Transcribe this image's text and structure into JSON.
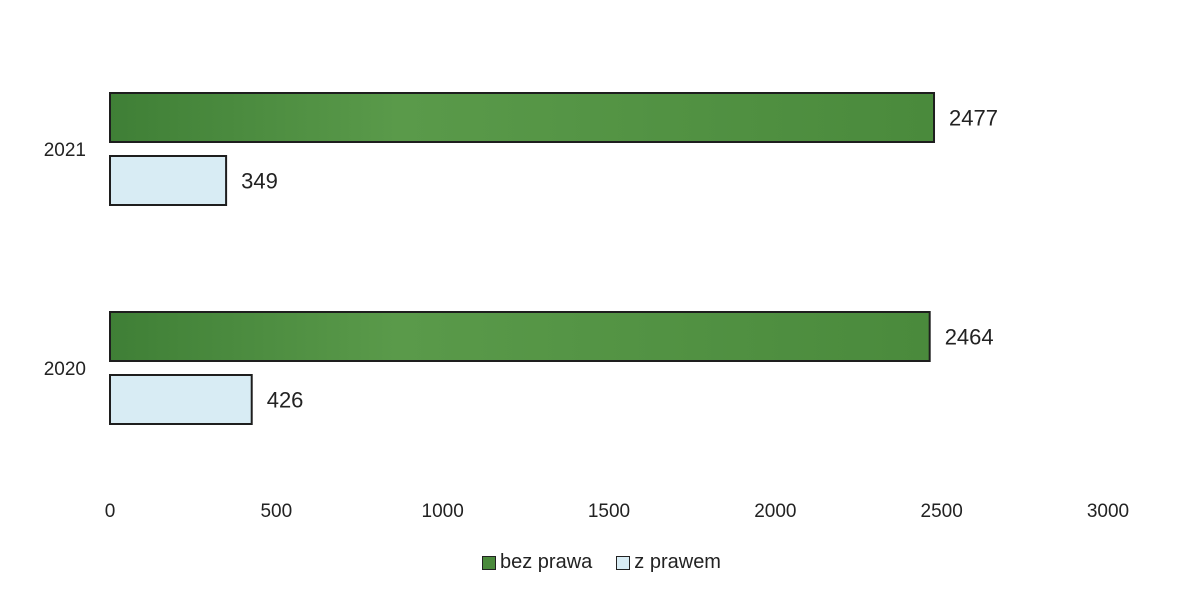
{
  "chart_data": {
    "type": "bar",
    "orientation": "horizontal",
    "categories": [
      "2021",
      "2020"
    ],
    "series": [
      {
        "name": "bez prawa",
        "values": [
          2477,
          2464
        ],
        "color": "#4a8a3c"
      },
      {
        "name": "z prawem",
        "values": [
          349,
          426
        ],
        "color": "#d8ecf4"
      }
    ],
    "data_labels": true,
    "xlim": [
      0,
      3000
    ],
    "x_ticks": [
      "0",
      "500",
      "1000",
      "1500",
      "2000",
      "2500",
      "3000"
    ],
    "grid": false,
    "legend_position": "bottom-center"
  }
}
